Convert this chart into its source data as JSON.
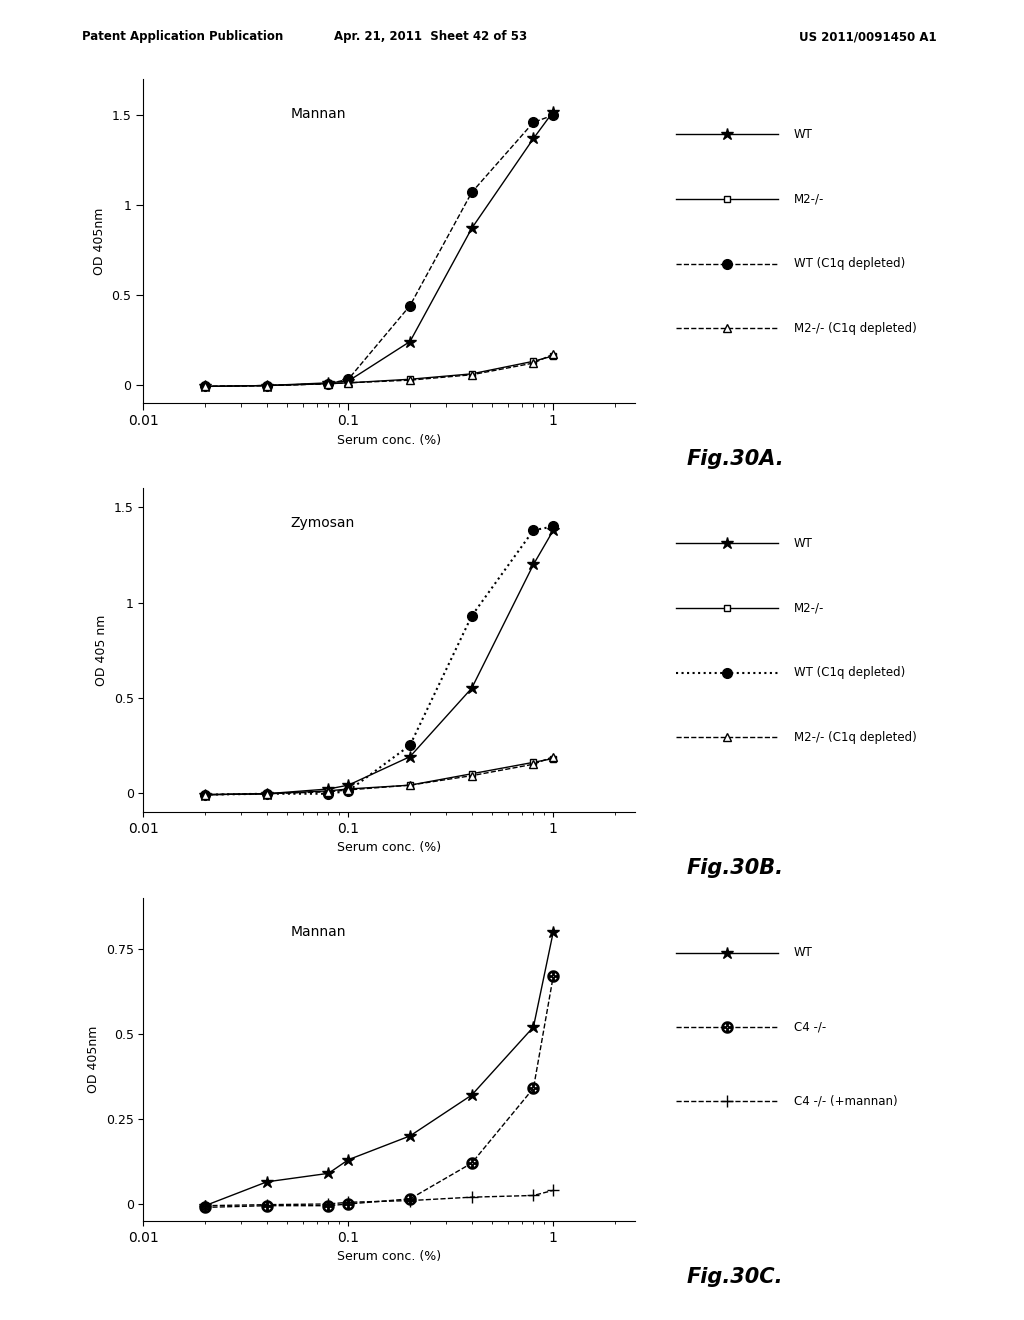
{
  "fig30A": {
    "title": "Mannan",
    "ylabel": "OD 405nm",
    "xlabel": "Serum conc. (%)",
    "fig_label": "Fig.30A.",
    "x": [
      0.02,
      0.04,
      0.08,
      0.1,
      0.2,
      0.4,
      0.8,
      1.0
    ],
    "WT": [
      -0.01,
      -0.005,
      0.01,
      0.02,
      0.24,
      0.87,
      1.37,
      1.52
    ],
    "M2": [
      -0.01,
      -0.005,
      0.005,
      0.01,
      0.03,
      0.06,
      0.13,
      0.16
    ],
    "WT_C1q": [
      -0.01,
      -0.005,
      0.005,
      0.03,
      0.44,
      1.07,
      1.46,
      1.5
    ],
    "M2_C1q": [
      -0.01,
      -0.005,
      0.005,
      0.01,
      0.025,
      0.055,
      0.12,
      0.17
    ],
    "ylim": [
      -0.1,
      1.7
    ],
    "yticks": [
      0,
      0.5,
      1,
      1.5
    ],
    "legend": [
      "WT",
      "M2-/-",
      "WT (C1q depleted)",
      "M2-/- (C1q depleted)"
    ]
  },
  "fig30B": {
    "title": "Zymosan",
    "ylabel": "OD 405 nm",
    "xlabel": "Serum conc. (%)",
    "fig_label": "Fig.30B.",
    "x": [
      0.02,
      0.04,
      0.08,
      0.1,
      0.2,
      0.4,
      0.8,
      1.0
    ],
    "WT": [
      -0.01,
      -0.005,
      0.02,
      0.04,
      0.19,
      0.55,
      1.2,
      1.38
    ],
    "M2": [
      -0.01,
      -0.005,
      0.01,
      0.02,
      0.04,
      0.1,
      0.16,
      0.18
    ],
    "WT_C1q": [
      -0.01,
      -0.005,
      -0.005,
      0.01,
      0.25,
      0.93,
      1.38,
      1.4
    ],
    "M2_C1q": [
      -0.01,
      -0.005,
      0.005,
      0.015,
      0.04,
      0.09,
      0.15,
      0.19
    ],
    "ylim": [
      -0.1,
      1.6
    ],
    "yticks": [
      0,
      0.5,
      1,
      1.5
    ],
    "legend": [
      "WT",
      "M2-/-",
      "WT (C1q depleted)",
      "M2-/- (C1q depleted)"
    ]
  },
  "fig30C": {
    "title": "Mannan",
    "ylabel": "OD 405nm",
    "xlabel": "Serum conc. (%)",
    "fig_label": "Fig.30C.",
    "x": [
      0.02,
      0.04,
      0.08,
      0.1,
      0.2,
      0.4,
      0.8,
      1.0
    ],
    "WT": [
      -0.005,
      0.065,
      0.09,
      0.13,
      0.2,
      0.32,
      0.52,
      0.8
    ],
    "C4": [
      -0.01,
      -0.005,
      -0.005,
      0.0,
      0.015,
      0.12,
      0.34,
      0.67
    ],
    "C4_mannan": [
      -0.005,
      -0.002,
      0.0,
      0.005,
      0.01,
      0.02,
      0.025,
      0.04
    ],
    "ylim": [
      -0.05,
      0.9
    ],
    "yticks": [
      0,
      0.25,
      0.5,
      0.75
    ],
    "legend": [
      "WT",
      "C4 -/-",
      "C4 -/- (+mannan)"
    ]
  },
  "header_left": "Patent Application Publication",
  "header_mid": "Apr. 21, 2011  Sheet 42 of 53",
  "header_right": "US 2011/0091450 A1",
  "bg_color": "#ffffff"
}
